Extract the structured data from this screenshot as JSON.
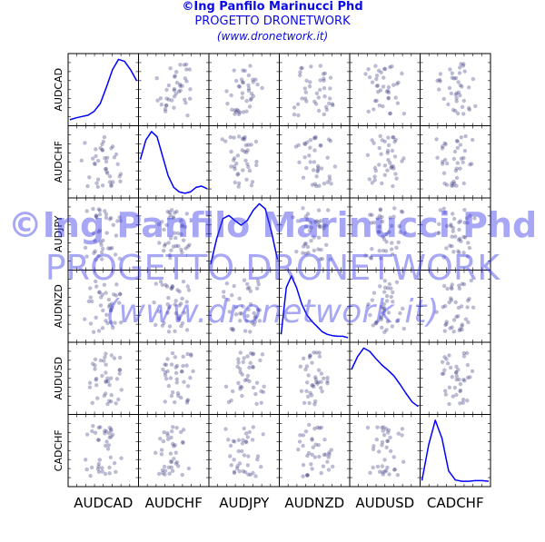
{
  "header": {
    "line1": "©Ing  Panfilo Marinucci  Phd",
    "line2": "PROGETTO DRONETWORK",
    "line3": "(www.dronetwork.it)"
  },
  "watermark": {
    "line1": "©Ing  Panfilo Marinucci  Phd",
    "line2": "PROGETTO DRONETWORK",
    "line3": "(www.dronetwork.it)"
  },
  "chart_data": {
    "type": "scatter",
    "subtype": "scatter-matrix",
    "variables": [
      "AUDCAD",
      "AUDCHF",
      "AUDJPY",
      "AUDNZD",
      "AUDUSD",
      "CADCHF"
    ],
    "diagonal": "kde",
    "grid": false,
    "colors": {
      "points": "#3d3d80",
      "kde": "#0000ff"
    },
    "kde_curves": [
      [
        0.05,
        0.08,
        0.1,
        0.12,
        0.18,
        0.3,
        0.55,
        0.82,
        0.98,
        0.95,
        0.82,
        0.65
      ],
      [
        0.55,
        0.85,
        0.98,
        0.9,
        0.6,
        0.3,
        0.12,
        0.05,
        0.03,
        0.05,
        0.12,
        0.14,
        0.1
      ],
      [
        0.05,
        0.45,
        0.75,
        0.8,
        0.72,
        0.65,
        0.72,
        0.88,
        0.98,
        0.9,
        0.55,
        0.12
      ],
      [
        0.08,
        0.8,
        0.98,
        0.8,
        0.55,
        0.38,
        0.28,
        0.2,
        0.12,
        0.08,
        0.06,
        0.05,
        0.05,
        0.03
      ],
      [
        0.65,
        0.85,
        0.98,
        0.93,
        0.82,
        0.72,
        0.64,
        0.55,
        0.42,
        0.28,
        0.15,
        0.08
      ],
      [
        0.05,
        0.6,
        0.98,
        0.7,
        0.2,
        0.06,
        0.04,
        0.04,
        0.05,
        0.05,
        0.04
      ]
    ]
  }
}
